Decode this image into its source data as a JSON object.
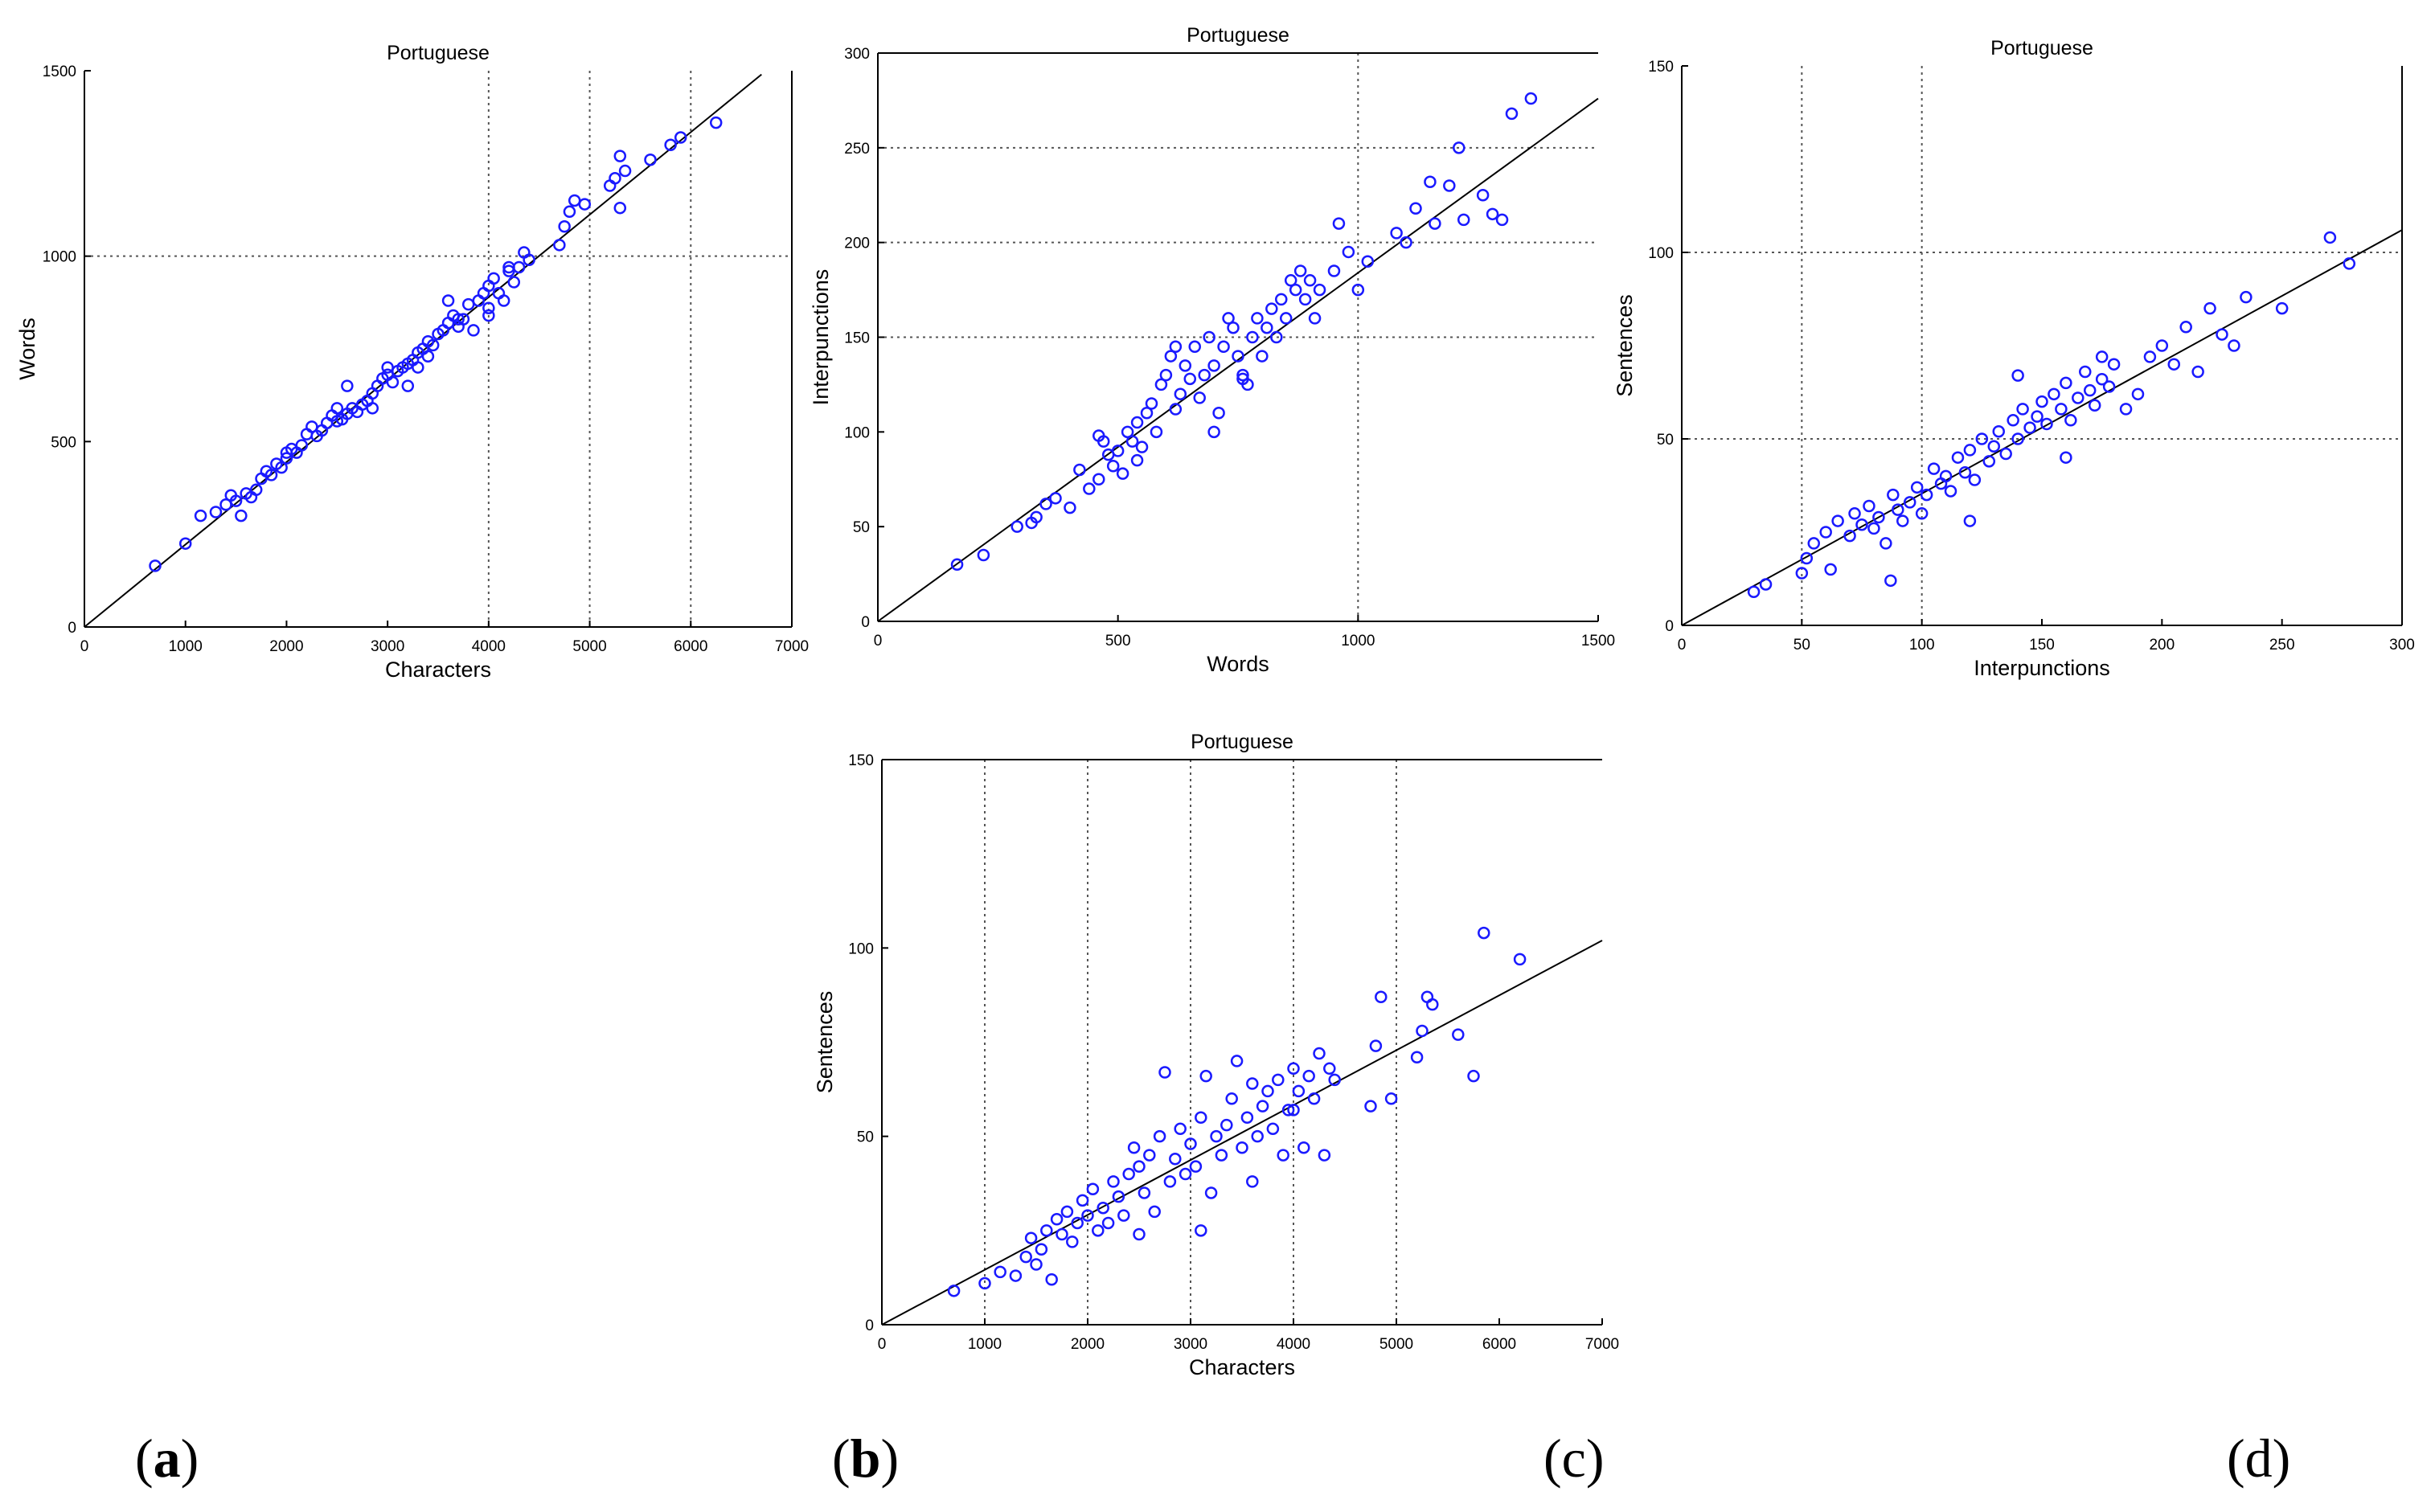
{
  "colors": {
    "marker": "#1a1aff",
    "line": "#000000",
    "grid": "#555555",
    "text": "#000000"
  },
  "captions": [
    "a",
    "b",
    "c",
    "d"
  ],
  "chart_data": [
    {
      "id": "a",
      "type": "scatter",
      "title": "Portuguese",
      "xlabel": "Characters",
      "ylabel": "Words",
      "xlim": [
        0,
        7000
      ],
      "ylim": [
        0,
        1500
      ],
      "xticks": [
        0,
        1000,
        2000,
        3000,
        4000,
        5000,
        6000,
        7000
      ],
      "yticks": [
        0,
        500,
        1000,
        1500
      ],
      "xtick_labels": [
        "0",
        "1000",
        "2000",
        "3000",
        "4000",
        "5000",
        "6000",
        "7000"
      ],
      "ytick_labels": [
        "0",
        "500",
        "1000",
        "1500"
      ],
      "grid": true,
      "fit_line": [
        [
          0,
          0
        ],
        [
          6700,
          1490
        ]
      ],
      "points": [
        [
          700,
          165
        ],
        [
          1000,
          225
        ],
        [
          1150,
          300
        ],
        [
          1300,
          310
        ],
        [
          1400,
          330
        ],
        [
          1450,
          355
        ],
        [
          1500,
          340
        ],
        [
          1550,
          300
        ],
        [
          1600,
          360
        ],
        [
          1650,
          350
        ],
        [
          1700,
          370
        ],
        [
          1750,
          400
        ],
        [
          1800,
          420
        ],
        [
          1850,
          410
        ],
        [
          1900,
          440
        ],
        [
          1950,
          430
        ],
        [
          2000,
          455
        ],
        [
          2000,
          470
        ],
        [
          2050,
          480
        ],
        [
          2100,
          470
        ],
        [
          2150,
          490
        ],
        [
          2200,
          520
        ],
        [
          2250,
          540
        ],
        [
          2300,
          515
        ],
        [
          2350,
          530
        ],
        [
          2400,
          550
        ],
        [
          2450,
          570
        ],
        [
          2500,
          555
        ],
        [
          2500,
          590
        ],
        [
          2550,
          560
        ],
        [
          2600,
          575
        ],
        [
          2650,
          590
        ],
        [
          2700,
          580
        ],
        [
          2750,
          600
        ],
        [
          2800,
          610
        ],
        [
          2850,
          630
        ],
        [
          2850,
          590
        ],
        [
          2900,
          650
        ],
        [
          2950,
          670
        ],
        [
          3000,
          700
        ],
        [
          3000,
          680
        ],
        [
          3050,
          660
        ],
        [
          3100,
          690
        ],
        [
          3150,
          700
        ],
        [
          3200,
          710
        ],
        [
          3250,
          720
        ],
        [
          3300,
          700
        ],
        [
          3300,
          740
        ],
        [
          3350,
          750
        ],
        [
          3400,
          770
        ],
        [
          3450,
          760
        ],
        [
          3500,
          790
        ],
        [
          3550,
          800
        ],
        [
          3600,
          820
        ],
        [
          3650,
          840
        ],
        [
          3700,
          810
        ],
        [
          3750,
          830
        ],
        [
          3800,
          870
        ],
        [
          3850,
          800
        ],
        [
          3900,
          880
        ],
        [
          3950,
          900
        ],
        [
          4000,
          860
        ],
        [
          4000,
          920
        ],
        [
          4050,
          940
        ],
        [
          4100,
          900
        ],
        [
          4150,
          880
        ],
        [
          4200,
          960
        ],
        [
          4250,
          930
        ],
        [
          4300,
          970
        ],
        [
          4350,
          1010
        ],
        [
          4400,
          990
        ],
        [
          3600,
          880
        ],
        [
          3700,
          830
        ],
        [
          4000,
          840
        ],
        [
          4200,
          970
        ],
        [
          4700,
          1030
        ],
        [
          4750,
          1080
        ],
        [
          4800,
          1120
        ],
        [
          4850,
          1150
        ],
        [
          4950,
          1140
        ],
        [
          5200,
          1190
        ],
        [
          5250,
          1210
        ],
        [
          5300,
          1270
        ],
        [
          5350,
          1230
        ],
        [
          5300,
          1130
        ],
        [
          5600,
          1260
        ],
        [
          5800,
          1300
        ],
        [
          5900,
          1320
        ],
        [
          6250,
          1360
        ],
        [
          2600,
          650
        ],
        [
          3200,
          650
        ],
        [
          3400,
          730
        ]
      ]
    },
    {
      "id": "b",
      "type": "scatter",
      "title": "Portuguese",
      "xlabel": "Words",
      "ylabel": "Interpunctions",
      "xlim": [
        0,
        1500
      ],
      "ylim": [
        0,
        300
      ],
      "xticks": [
        0,
        500,
        1000,
        1500
      ],
      "yticks": [
        0,
        50,
        100,
        150,
        200,
        250,
        300
      ],
      "xtick_labels": [
        "0",
        "500",
        "1000",
        "1500"
      ],
      "ytick_labels": [
        "0",
        "50",
        "100",
        "150",
        "200",
        "250",
        "300"
      ],
      "grid": true,
      "fit_line": [
        [
          0,
          0
        ],
        [
          1500,
          276
        ]
      ],
      "points": [
        [
          165,
          30
        ],
        [
          220,
          35
        ],
        [
          290,
          50
        ],
        [
          320,
          52
        ],
        [
          330,
          55
        ],
        [
          350,
          62
        ],
        [
          370,
          65
        ],
        [
          400,
          60
        ],
        [
          420,
          80
        ],
        [
          440,
          70
        ],
        [
          460,
          75
        ],
        [
          470,
          95
        ],
        [
          480,
          88
        ],
        [
          490,
          82
        ],
        [
          500,
          90
        ],
        [
          510,
          78
        ],
        [
          520,
          100
        ],
        [
          530,
          95
        ],
        [
          540,
          105
        ],
        [
          550,
          92
        ],
        [
          560,
          110
        ],
        [
          570,
          115
        ],
        [
          580,
          100
        ],
        [
          590,
          125
        ],
        [
          600,
          130
        ],
        [
          610,
          140
        ],
        [
          620,
          112
        ],
        [
          630,
          120
        ],
        [
          640,
          135
        ],
        [
          650,
          128
        ],
        [
          660,
          145
        ],
        [
          670,
          118
        ],
        [
          680,
          130
        ],
        [
          690,
          150
        ],
        [
          700,
          135
        ],
        [
          710,
          110
        ],
        [
          720,
          145
        ],
        [
          730,
          160
        ],
        [
          740,
          155
        ],
        [
          750,
          140
        ],
        [
          760,
          130
        ],
        [
          770,
          125
        ],
        [
          780,
          150
        ],
        [
          790,
          160
        ],
        [
          800,
          140
        ],
        [
          810,
          155
        ],
        [
          820,
          165
        ],
        [
          830,
          150
        ],
        [
          840,
          170
        ],
        [
          850,
          160
        ],
        [
          860,
          180
        ],
        [
          870,
          175
        ],
        [
          880,
          185
        ],
        [
          890,
          170
        ],
        [
          900,
          180
        ],
        [
          910,
          160
        ],
        [
          920,
          175
        ],
        [
          950,
          185
        ],
        [
          960,
          210
        ],
        [
          980,
          195
        ],
        [
          1000,
          175
        ],
        [
          1020,
          190
        ],
        [
          1080,
          205
        ],
        [
          1100,
          200
        ],
        [
          1120,
          218
        ],
        [
          1150,
          232
        ],
        [
          1160,
          210
        ],
        [
          1190,
          230
        ],
        [
          1210,
          250
        ],
        [
          1220,
          212
        ],
        [
          1260,
          225
        ],
        [
          1280,
          215
        ],
        [
          1300,
          212
        ],
        [
          1320,
          268
        ],
        [
          1360,
          276
        ],
        [
          620,
          145
        ],
        [
          700,
          100
        ],
        [
          760,
          128
        ],
        [
          540,
          85
        ],
        [
          460,
          98
        ]
      ]
    },
    {
      "id": "c",
      "type": "scatter",
      "title": "Portuguese",
      "xlabel": "Interpunctions",
      "ylabel": "Sentences",
      "xlim": [
        0,
        300
      ],
      "ylim": [
        0,
        150
      ],
      "xticks": [
        0,
        50,
        100,
        150,
        200,
        250,
        300
      ],
      "yticks": [
        0,
        50,
        100,
        150
      ],
      "xtick_labels": [
        "0",
        "50",
        "100",
        "150",
        "200",
        "250",
        "300"
      ],
      "ytick_labels": [
        "0",
        "50",
        "100",
        "150"
      ],
      "grid": true,
      "fit_line": [
        [
          0,
          0
        ],
        [
          300,
          106
        ]
      ],
      "points": [
        [
          30,
          9
        ],
        [
          35,
          11
        ],
        [
          50,
          14
        ],
        [
          52,
          18
        ],
        [
          55,
          22
        ],
        [
          60,
          25
        ],
        [
          62,
          15
        ],
        [
          65,
          28
        ],
        [
          70,
          24
        ],
        [
          72,
          30
        ],
        [
          75,
          27
        ],
        [
          78,
          32
        ],
        [
          80,
          26
        ],
        [
          82,
          29
        ],
        [
          85,
          22
        ],
        [
          87,
          12
        ],
        [
          88,
          35
        ],
        [
          90,
          31
        ],
        [
          92,
          28
        ],
        [
          95,
          33
        ],
        [
          98,
          37
        ],
        [
          100,
          30
        ],
        [
          102,
          35
        ],
        [
          105,
          42
        ],
        [
          108,
          38
        ],
        [
          110,
          40
        ],
        [
          112,
          36
        ],
        [
          115,
          45
        ],
        [
          118,
          41
        ],
        [
          120,
          47
        ],
        [
          122,
          39
        ],
        [
          125,
          50
        ],
        [
          128,
          44
        ],
        [
          130,
          48
        ],
        [
          132,
          52
        ],
        [
          135,
          46
        ],
        [
          138,
          55
        ],
        [
          140,
          50
        ],
        [
          142,
          58
        ],
        [
          145,
          53
        ],
        [
          148,
          56
        ],
        [
          150,
          60
        ],
        [
          152,
          54
        ],
        [
          155,
          62
        ],
        [
          158,
          58
        ],
        [
          160,
          65
        ],
        [
          162,
          55
        ],
        [
          165,
          61
        ],
        [
          168,
          68
        ],
        [
          170,
          63
        ],
        [
          172,
          59
        ],
        [
          175,
          66
        ],
        [
          178,
          64
        ],
        [
          180,
          70
        ],
        [
          185,
          58
        ],
        [
          190,
          62
        ],
        [
          195,
          72
        ],
        [
          200,
          75
        ],
        [
          205,
          70
        ],
        [
          210,
          80
        ],
        [
          215,
          68
        ],
        [
          220,
          85
        ],
        [
          225,
          78
        ],
        [
          230,
          75
        ],
        [
          235,
          88
        ],
        [
          250,
          85
        ],
        [
          270,
          104
        ],
        [
          278,
          97
        ],
        [
          140,
          67
        ],
        [
          120,
          28
        ],
        [
          160,
          45
        ],
        [
          175,
          72
        ]
      ]
    },
    {
      "id": "d",
      "type": "scatter",
      "title": "Portuguese",
      "xlabel": "Characters",
      "ylabel": "Sentences",
      "xlim": [
        0,
        7000
      ],
      "ylim": [
        0,
        150
      ],
      "xticks": [
        0,
        1000,
        2000,
        3000,
        4000,
        5000,
        6000,
        7000
      ],
      "yticks": [
        0,
        50,
        100,
        150
      ],
      "xtick_labels": [
        "0",
        "1000",
        "2000",
        "3000",
        "4000",
        "5000",
        "6000",
        "7000"
      ],
      "ytick_labels": [
        "0",
        "50",
        "100",
        "150"
      ],
      "grid": true,
      "fit_line": [
        [
          0,
          0
        ],
        [
          7000,
          102
        ]
      ],
      "points": [
        [
          700,
          9
        ],
        [
          1000,
          11
        ],
        [
          1150,
          14
        ],
        [
          1300,
          13
        ],
        [
          1400,
          18
        ],
        [
          1450,
          23
        ],
        [
          1500,
          16
        ],
        [
          1550,
          20
        ],
        [
          1600,
          25
        ],
        [
          1650,
          12
        ],
        [
          1700,
          28
        ],
        [
          1750,
          24
        ],
        [
          1800,
          30
        ],
        [
          1850,
          22
        ],
        [
          1900,
          27
        ],
        [
          1950,
          33
        ],
        [
          2000,
          29
        ],
        [
          2050,
          36
        ],
        [
          2100,
          25
        ],
        [
          2150,
          31
        ],
        [
          2200,
          27
        ],
        [
          2250,
          38
        ],
        [
          2300,
          34
        ],
        [
          2350,
          29
        ],
        [
          2400,
          40
        ],
        [
          2450,
          47
        ],
        [
          2500,
          42
        ],
        [
          2550,
          35
        ],
        [
          2600,
          45
        ],
        [
          2650,
          30
        ],
        [
          2700,
          50
        ],
        [
          2750,
          67
        ],
        [
          2800,
          38
        ],
        [
          2850,
          44
        ],
        [
          2900,
          52
        ],
        [
          2950,
          40
        ],
        [
          3000,
          48
        ],
        [
          3050,
          42
        ],
        [
          3100,
          55
        ],
        [
          3150,
          66
        ],
        [
          3200,
          35
        ],
        [
          3250,
          50
        ],
        [
          3300,
          45
        ],
        [
          3350,
          53
        ],
        [
          3400,
          60
        ],
        [
          3450,
          70
        ],
        [
          3500,
          47
        ],
        [
          3550,
          55
        ],
        [
          3600,
          64
        ],
        [
          3650,
          50
        ],
        [
          3700,
          58
        ],
        [
          3750,
          62
        ],
        [
          3800,
          52
        ],
        [
          3850,
          65
        ],
        [
          3900,
          45
        ],
        [
          3950,
          57
        ],
        [
          4000,
          68
        ],
        [
          4050,
          62
        ],
        [
          4100,
          47
        ],
        [
          4150,
          66
        ],
        [
          4200,
          60
        ],
        [
          4250,
          72
        ],
        [
          4300,
          45
        ],
        [
          4350,
          68
        ],
        [
          4400,
          65
        ],
        [
          4750,
          58
        ],
        [
          4800,
          74
        ],
        [
          4850,
          87
        ],
        [
          4950,
          60
        ],
        [
          5200,
          71
        ],
        [
          5250,
          78
        ],
        [
          5300,
          87
        ],
        [
          5350,
          85
        ],
        [
          5600,
          77
        ],
        [
          5750,
          66
        ],
        [
          5850,
          104
        ],
        [
          6200,
          97
        ],
        [
          2500,
          24
        ],
        [
          3100,
          25
        ],
        [
          3600,
          38
        ],
        [
          4000,
          57
        ]
      ]
    }
  ]
}
